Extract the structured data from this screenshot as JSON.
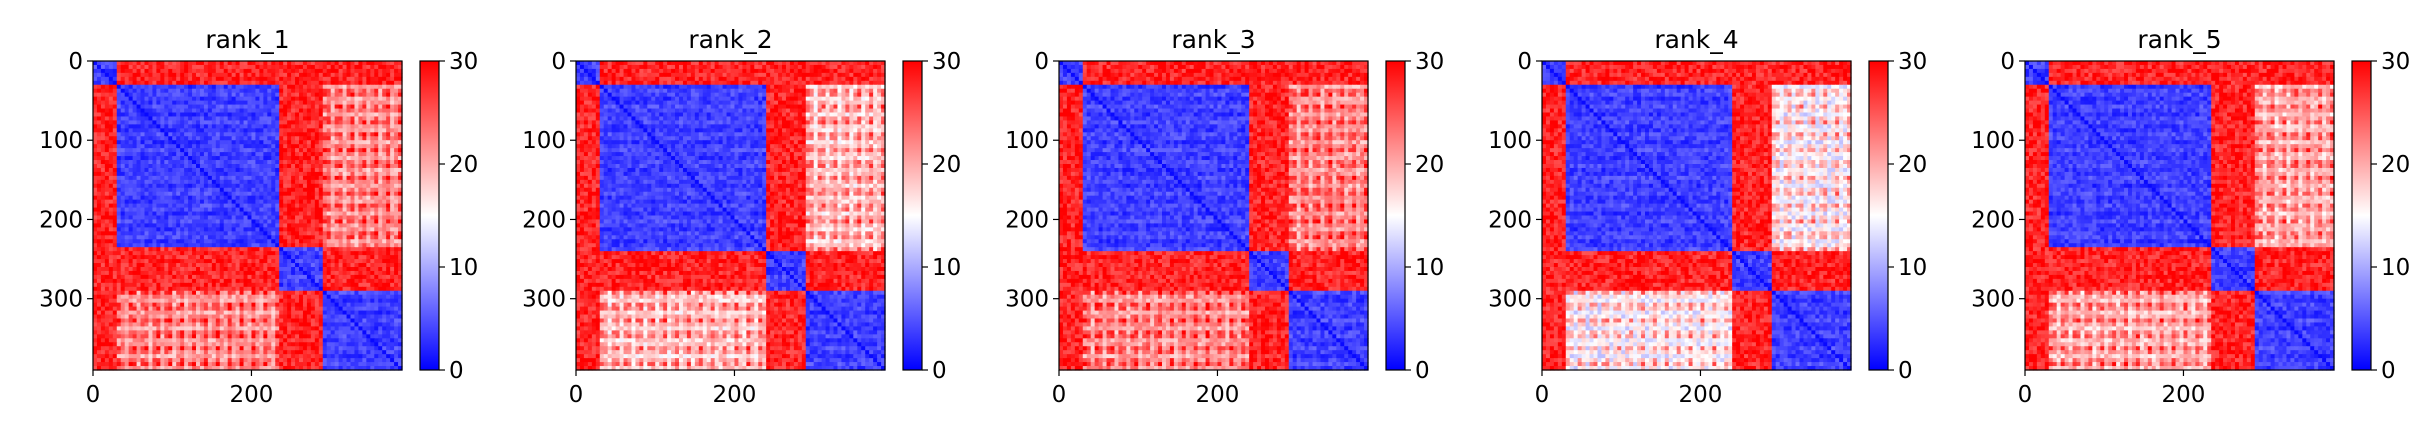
{
  "chart_data": [
    {
      "type": "heatmap",
      "title": "rank_1",
      "n": 390,
      "xticks": [
        0,
        200
      ],
      "yticks": [
        0,
        100,
        200,
        300
      ],
      "colorbar": {
        "min": 0,
        "max": 30,
        "ticks": [
          0,
          10,
          20,
          30
        ],
        "colors": [
          "#0000ff",
          "#ffffff",
          "#ff0000"
        ]
      },
      "domains": [
        {
          "start": 0,
          "end": 30
        },
        {
          "start": 30,
          "end": 235
        },
        {
          "start": 235,
          "end": 290
        },
        {
          "start": 290,
          "end": 390
        }
      ],
      "intra_domain_value": 3,
      "inter_domain_value": 28,
      "mixed_regions": [
        {
          "rows": [
            30,
            235
          ],
          "cols": [
            290,
            390
          ],
          "value": 23
        },
        {
          "rows": [
            290,
            390
          ],
          "cols": [
            30,
            235
          ],
          "value": 23
        }
      ]
    },
    {
      "type": "heatmap",
      "title": "rank_2",
      "n": 390,
      "xticks": [
        0,
        200
      ],
      "yticks": [
        0,
        100,
        200,
        300
      ],
      "colorbar": {
        "min": 0,
        "max": 30,
        "ticks": [
          0,
          10,
          20,
          30
        ],
        "colors": [
          "#0000ff",
          "#ffffff",
          "#ff0000"
        ]
      },
      "domains": [
        {
          "start": 0,
          "end": 30
        },
        {
          "start": 30,
          "end": 240
        },
        {
          "start": 240,
          "end": 290
        },
        {
          "start": 290,
          "end": 390
        }
      ],
      "intra_domain_value": 3,
      "inter_domain_value": 28,
      "mixed_regions": [
        {
          "rows": [
            30,
            240
          ],
          "cols": [
            290,
            390
          ],
          "value": 20
        },
        {
          "rows": [
            290,
            390
          ],
          "cols": [
            30,
            240
          ],
          "value": 20
        }
      ]
    },
    {
      "type": "heatmap",
      "title": "rank_3",
      "n": 390,
      "xticks": [
        0,
        200
      ],
      "yticks": [
        0,
        100,
        200,
        300
      ],
      "colorbar": {
        "min": 0,
        "max": 30,
        "ticks": [
          0,
          10,
          20,
          30
        ],
        "colors": [
          "#0000ff",
          "#ffffff",
          "#ff0000"
        ]
      },
      "domains": [
        {
          "start": 0,
          "end": 30
        },
        {
          "start": 30,
          "end": 240
        },
        {
          "start": 240,
          "end": 290
        },
        {
          "start": 290,
          "end": 390
        }
      ],
      "intra_domain_value": 3,
      "inter_domain_value": 28,
      "mixed_regions": [
        {
          "rows": [
            30,
            240
          ],
          "cols": [
            290,
            390
          ],
          "value": 23
        },
        {
          "rows": [
            290,
            390
          ],
          "cols": [
            30,
            240
          ],
          "value": 23
        }
      ]
    },
    {
      "type": "heatmap",
      "title": "rank_4",
      "n": 390,
      "xticks": [
        0,
        200
      ],
      "yticks": [
        0,
        100,
        200,
        300
      ],
      "colorbar": {
        "min": 0,
        "max": 30,
        "ticks": [
          0,
          10,
          20,
          30
        ],
        "colors": [
          "#0000ff",
          "#ffffff",
          "#ff0000"
        ]
      },
      "domains": [
        {
          "start": 0,
          "end": 30
        },
        {
          "start": 30,
          "end": 240
        },
        {
          "start": 240,
          "end": 290
        },
        {
          "start": 290,
          "end": 390
        }
      ],
      "intra_domain_value": 3,
      "inter_domain_value": 28,
      "mixed_regions": [
        {
          "rows": [
            30,
            240
          ],
          "cols": [
            290,
            390
          ],
          "value": 17
        },
        {
          "rows": [
            290,
            390
          ],
          "cols": [
            30,
            240
          ],
          "value": 17
        }
      ]
    },
    {
      "type": "heatmap",
      "title": "rank_5",
      "n": 390,
      "xticks": [
        0,
        200
      ],
      "yticks": [
        0,
        100,
        200,
        300
      ],
      "colorbar": {
        "min": 0,
        "max": 30,
        "ticks": [
          0,
          10,
          20,
          30
        ],
        "colors": [
          "#0000ff",
          "#ffffff",
          "#ff0000"
        ]
      },
      "domains": [
        {
          "start": 0,
          "end": 30
        },
        {
          "start": 30,
          "end": 235
        },
        {
          "start": 235,
          "end": 290
        },
        {
          "start": 290,
          "end": 390
        }
      ],
      "intra_domain_value": 3,
      "inter_domain_value": 28,
      "mixed_regions": [
        {
          "rows": [
            30,
            235
          ],
          "cols": [
            290,
            390
          ],
          "value": 21
        },
        {
          "rows": [
            290,
            390
          ],
          "cols": [
            30,
            235
          ],
          "value": 21
        }
      ]
    }
  ]
}
